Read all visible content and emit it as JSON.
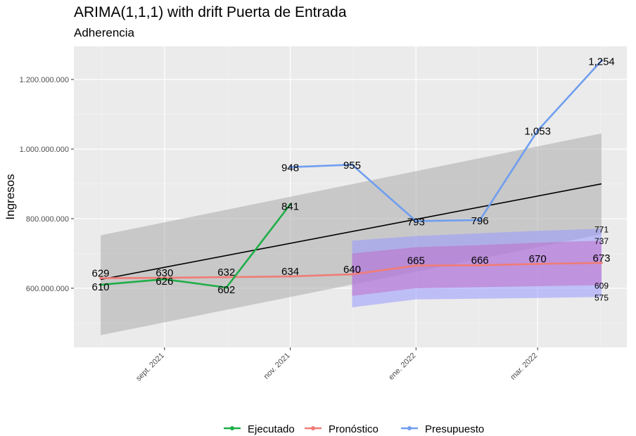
{
  "chart_data": {
    "type": "line",
    "title": "ARIMA(1,1,1) with drift Puerta de Entrada",
    "subtitle": "Adherencia",
    "ylabel": "Ingresos",
    "xlabel": "",
    "ylim": [
      430000000,
      1295000000
    ],
    "y_ticks": [
      {
        "value": 600000000,
        "label": "600.000.000"
      },
      {
        "value": 800000000,
        "label": "800.000.000"
      },
      {
        "value": 1000000000,
        "label": "1.000.000.000"
      },
      {
        "value": 1200000000,
        "label": "1.200.000.000"
      }
    ],
    "x_ticks": [
      {
        "date": "2021-09-01",
        "label": "sept. 2021"
      },
      {
        "date": "2021-11-01",
        "label": "nov. 2021"
      },
      {
        "date": "2022-01-01",
        "label": "ene. 2022"
      },
      {
        "date": "2022-03-01",
        "label": "mar. 2022"
      }
    ],
    "grid": true,
    "legend_position": "bottom",
    "series": [
      {
        "name": "Ejecutado",
        "color": "#1fae48",
        "points": [
          {
            "x": "2021-08-01",
            "y": 610000000,
            "label": "610"
          },
          {
            "x": "2021-09-01",
            "y": 626000000,
            "label": "626"
          },
          {
            "x": "2021-10-01",
            "y": 602000000,
            "label": "602"
          },
          {
            "x": "2021-11-01",
            "y": 841000000,
            "label": "841"
          }
        ]
      },
      {
        "name": "Pronóstico",
        "color": "#f07c76",
        "points": [
          {
            "x": "2021-08-01",
            "y": 629000000,
            "label": "629"
          },
          {
            "x": "2021-09-01",
            "y": 630000000,
            "label": "630"
          },
          {
            "x": "2021-10-01",
            "y": 632000000,
            "label": "632"
          },
          {
            "x": "2021-11-01",
            "y": 634000000,
            "label": "634"
          },
          {
            "x": "2021-12-01",
            "y": 640000000,
            "label": "640"
          },
          {
            "x": "2022-01-01",
            "y": 665000000,
            "label": "665"
          },
          {
            "x": "2022-02-01",
            "y": 666000000,
            "label": "666"
          },
          {
            "x": "2022-03-01",
            "y": 670000000,
            "label": "670"
          },
          {
            "x": "2022-04-01",
            "y": 673000000,
            "label": "673"
          }
        ]
      },
      {
        "name": "Presupuesto",
        "color": "#6f9ef0",
        "points": [
          {
            "x": "2021-11-01",
            "y": 948000000,
            "label": "948"
          },
          {
            "x": "2021-12-01",
            "y": 955000000,
            "label": "955"
          },
          {
            "x": "2022-01-01",
            "y": 793000000,
            "label": "793"
          },
          {
            "x": "2022-02-01",
            "y": 796000000,
            "label": "796"
          },
          {
            "x": "2022-03-01",
            "y": 1053000000,
            "label": "1,053"
          },
          {
            "x": "2022-04-01",
            "y": 1254000000,
            "label": "1,254"
          }
        ]
      }
    ],
    "trend": {
      "color": "#000000",
      "points": [
        {
          "x": "2021-08-01",
          "y": 625000000
        },
        {
          "x": "2022-04-01",
          "y": 900000000
        }
      ],
      "band": {
        "color": "#a6a6a6",
        "points": [
          {
            "x": "2021-08-01",
            "lo": 465000000,
            "hi": 752000000
          },
          {
            "x": "2022-04-01",
            "lo": 755000000,
            "hi": 1045000000
          }
        ]
      }
    },
    "forecast_intervals": [
      {
        "level": "95",
        "color": "#9999ff",
        "points": [
          {
            "x": "2021-12-01",
            "lo": 545000000,
            "hi": 737000000
          },
          {
            "x": "2022-01-01",
            "lo": 568000000,
            "hi": 750000000
          },
          {
            "x": "2022-02-01",
            "lo": 570000000,
            "hi": 758000000
          },
          {
            "x": "2022-03-01",
            "lo": 572000000,
            "hi": 765000000
          },
          {
            "x": "2022-04-01",
            "lo": 575000000,
            "hi": 771000000
          }
        ]
      },
      {
        "level": "80",
        "color": "#c070c8",
        "points": [
          {
            "x": "2021-12-01",
            "lo": 578000000,
            "hi": 700000000
          },
          {
            "x": "2022-01-01",
            "lo": 600000000,
            "hi": 718000000
          },
          {
            "x": "2022-02-01",
            "lo": 603000000,
            "hi": 724000000
          },
          {
            "x": "2022-03-01",
            "lo": 606000000,
            "hi": 731000000
          },
          {
            "x": "2022-04-01",
            "lo": 609000000,
            "hi": 737000000
          }
        ]
      }
    ],
    "interval_labels": [
      "771",
      "737",
      "609",
      "575"
    ]
  }
}
